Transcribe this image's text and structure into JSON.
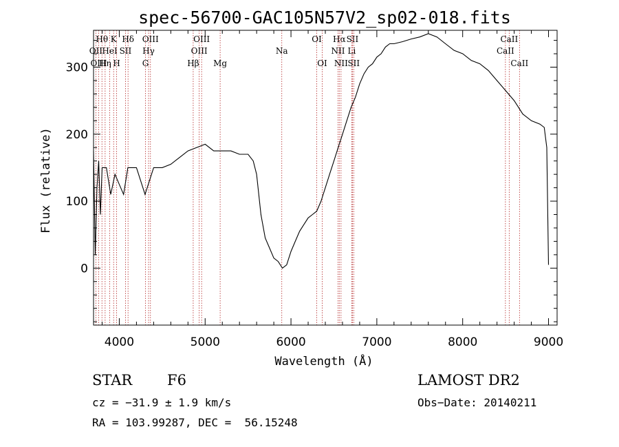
{
  "chart_data": {
    "type": "line",
    "title": "spec-56700-GAC105N57V2_sp02-018.fits",
    "xlabel": "Wavelength (Å)",
    "ylabel": "Flux (relative)",
    "xlim": [
      3700,
      9100
    ],
    "ylim": [
      -85,
      355
    ],
    "xticks": [
      4000,
      5000,
      6000,
      7000,
      8000,
      9000
    ],
    "yticks": [
      0,
      100,
      200,
      300
    ],
    "grid": false,
    "series": [
      {
        "x": [
          3700,
          3720,
          3740,
          3760,
          3780,
          3800,
          3850,
          3900,
          3950,
          4000,
          4050,
          4100,
          4200,
          4300,
          4400,
          4500,
          4600,
          4700,
          4800,
          4900,
          5000,
          5100,
          5200,
          5300,
          5400,
          5500,
          5560,
          5600,
          5650,
          5700,
          5750,
          5800,
          5850,
          5900,
          5950,
          6000,
          6050,
          6100,
          6150,
          6200,
          6250,
          6300,
          6350,
          6400,
          6450,
          6500,
          6550,
          6600,
          6650,
          6700,
          6750,
          6800,
          6850,
          6900,
          6950,
          7000,
          7050,
          7100,
          7150,
          7200,
          7300,
          7400,
          7500,
          7600,
          7700,
          7800,
          7900,
          8000,
          8100,
          8200,
          8300,
          8400,
          8500,
          8600,
          8700,
          8800,
          8900,
          8950,
          8980,
          9000
        ],
        "values": [
          175,
          20,
          120,
          160,
          80,
          150,
          150,
          110,
          140,
          125,
          110,
          150,
          150,
          110,
          150,
          150,
          155,
          165,
          175,
          180,
          185,
          175,
          175,
          175,
          170,
          170,
          160,
          140,
          80,
          45,
          30,
          15,
          10,
          0,
          5,
          25,
          40,
          55,
          65,
          75,
          80,
          85,
          100,
          120,
          140,
          160,
          180,
          200,
          220,
          240,
          255,
          275,
          290,
          300,
          305,
          315,
          320,
          330,
          335,
          335,
          338,
          342,
          345,
          350,
          345,
          335,
          325,
          320,
          310,
          305,
          295,
          280,
          265,
          250,
          230,
          220,
          215,
          210,
          180,
          5
        ]
      }
    ],
    "annotations": [
      {
        "label": "Hθ",
        "x": 3798,
        "row": 1
      },
      {
        "label": "OII",
        "x": 3727,
        "row": 2
      },
      {
        "label": "OIII",
        "x": 3760,
        "row": 3
      },
      {
        "label": "K",
        "x": 3934,
        "row": 1
      },
      {
        "label": "HeI",
        "x": 3889,
        "row": 2
      },
      {
        "label": "Hη",
        "x": 3835,
        "row": 3
      },
      {
        "label": "H",
        "x": 3969,
        "row": 3
      },
      {
        "label": "Hδ",
        "x": 4102,
        "row": 1
      },
      {
        "label": "SII",
        "x": 4072,
        "row": 2
      },
      {
        "label": "OIII",
        "x": 4363,
        "row": 1
      },
      {
        "label": "Hγ",
        "x": 4341,
        "row": 2
      },
      {
        "label": "G",
        "x": 4305,
        "row": 3
      },
      {
        "label": "OIII",
        "x": 4959,
        "row": 1
      },
      {
        "label": "OIII",
        "x": 4931,
        "row": 2
      },
      {
        "label": "Hβ",
        "x": 4861,
        "row": 3
      },
      {
        "label": "Mg",
        "x": 5175,
        "row": 3
      },
      {
        "label": "Na",
        "x": 5893,
        "row": 2
      },
      {
        "label": "OI",
        "x": 6300,
        "row": 1
      },
      {
        "label": "OI",
        "x": 6364,
        "row": 3
      },
      {
        "label": "Hα",
        "x": 6563,
        "row": 1
      },
      {
        "label": "SII",
        "x": 6716,
        "row": 1
      },
      {
        "label": "NII",
        "x": 6548,
        "row": 2
      },
      {
        "label": "Li",
        "x": 6708,
        "row": 2
      },
      {
        "label": "NII",
        "x": 6583,
        "row": 3
      },
      {
        "label": "SII",
        "x": 6731,
        "row": 3
      },
      {
        "label": "CaII",
        "x": 8542,
        "row": 1
      },
      {
        "label": "CaII",
        "x": 8498,
        "row": 2
      },
      {
        "label": "CaII",
        "x": 8662,
        "row": 3
      }
    ]
  },
  "info": {
    "object_class": "STAR",
    "subclass": "F6",
    "survey": "LAMOST DR2",
    "cz": "cz = −31.9 ± 1.9 km/s",
    "obs_date": "Obs−Date: 20140211",
    "coords": "RA = 103.99287, DEC =  56.15248"
  }
}
